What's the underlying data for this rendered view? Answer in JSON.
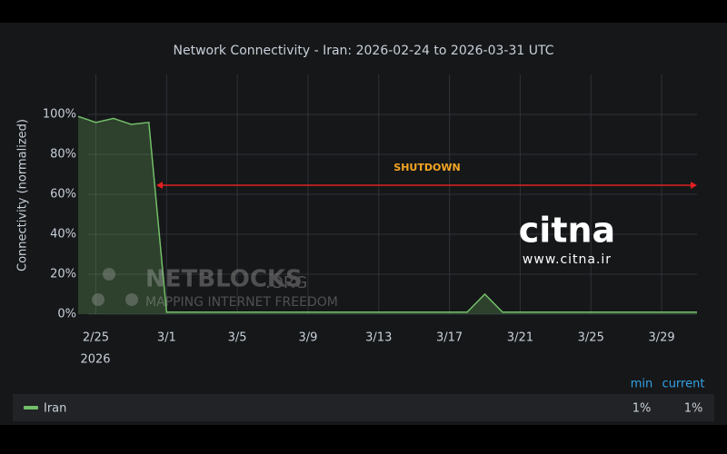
{
  "chart_data": {
    "type": "line",
    "title": "Network Connectivity - Iran: 2026-02-24 to 2026-03-31 UTC",
    "y_label": "Connectivity (normalized)",
    "x": [
      "2026-02-24",
      "2026-02-25",
      "2026-02-26",
      "2026-02-27",
      "2026-02-28",
      "2026-03-01",
      "2026-03-02",
      "2026-03-03",
      "2026-03-04",
      "2026-03-05",
      "2026-03-06",
      "2026-03-07",
      "2026-03-08",
      "2026-03-09",
      "2026-03-10",
      "2026-03-11",
      "2026-03-12",
      "2026-03-13",
      "2026-03-14",
      "2026-03-15",
      "2026-03-16",
      "2026-03-17",
      "2026-03-18",
      "2026-03-19",
      "2026-03-20",
      "2026-03-21",
      "2026-03-22",
      "2026-03-23",
      "2026-03-24",
      "2026-03-25",
      "2026-03-26",
      "2026-03-27",
      "2026-03-28",
      "2026-03-29",
      "2026-03-30",
      "2026-03-31"
    ],
    "series": [
      {
        "name": "Iran",
        "color": "#73bf69",
        "values": [
          99,
          96,
          98,
          95,
          96,
          1,
          1,
          1,
          1,
          1,
          1,
          1,
          1,
          1,
          1,
          1,
          1,
          1,
          1,
          1,
          1,
          1,
          1,
          10,
          1,
          1,
          1,
          1,
          1,
          1,
          1,
          1,
          1,
          1,
          1,
          1
        ]
      }
    ],
    "xlim": [
      "2026-02-24",
      "2026-03-31"
    ],
    "xticks": [
      {
        "value": "2026-02-25",
        "label": "2/25"
      },
      {
        "value": "2026-03-01",
        "label": "3/1"
      },
      {
        "value": "2026-03-05",
        "label": "3/5"
      },
      {
        "value": "2026-03-09",
        "label": "3/9"
      },
      {
        "value": "2026-03-13",
        "label": "3/13"
      },
      {
        "value": "2026-03-17",
        "label": "3/17"
      },
      {
        "value": "2026-03-21",
        "label": "3/21"
      },
      {
        "value": "2026-03-25",
        "label": "3/25"
      },
      {
        "value": "2026-03-29",
        "label": "3/29"
      }
    ],
    "x_year_label": "2026",
    "ylim": [
      0,
      120
    ],
    "yticks": [
      {
        "value": 0,
        "label": "0%"
      },
      {
        "value": 20,
        "label": "20%"
      },
      {
        "value": 40,
        "label": "40%"
      },
      {
        "value": 60,
        "label": "60%"
      },
      {
        "value": 80,
        "label": "80%"
      },
      {
        "value": 100,
        "label": "100%"
      }
    ],
    "grid": true,
    "annotation": "SHUTDOWN",
    "watermark": {
      "brand": "NETBLOCKS",
      "domain": ".ORG",
      "tagline": "MAPPING INTERNET FREEDOM"
    },
    "logo": {
      "name": "citna",
      "url": "www.citna.ir"
    },
    "legend_headers": [
      "min",
      "current"
    ],
    "legend_values": [
      1,
      1
    ],
    "legend_value_labels": [
      "1%",
      "1%"
    ]
  }
}
